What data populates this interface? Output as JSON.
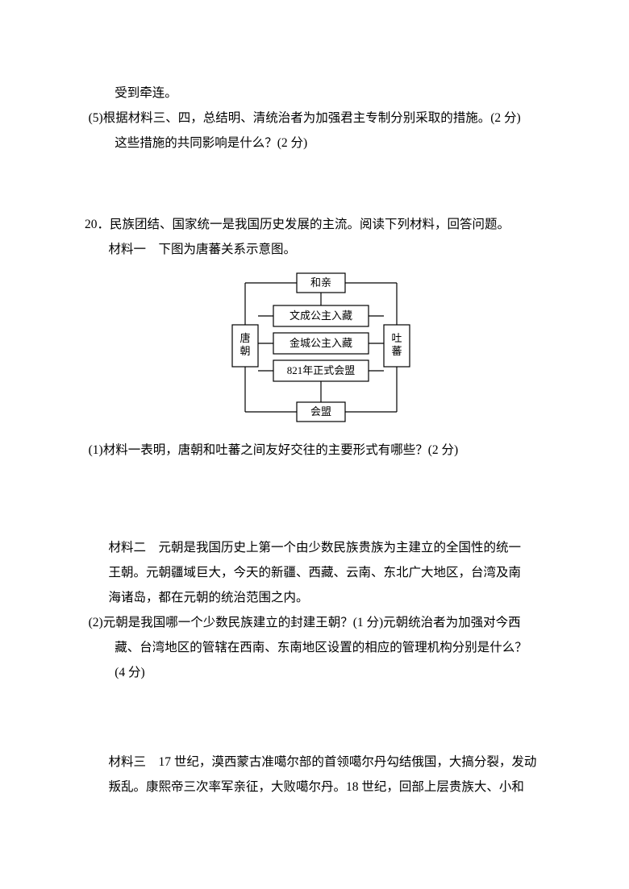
{
  "top": {
    "line1": "受到牵连。",
    "q5_line1": "(5)根据材料三、四，总结明、清统治者为加强君主专制分别采取的措施。(2 分)",
    "q5_line2": "这些措施的共同影响是什么？(2 分)"
  },
  "q20": {
    "intro": "20．民族团结、国家统一是我国历史发展的主流。阅读下列材料，回答问题。",
    "m1_label": "材料一　下图为唐蕃关系示意图。",
    "sub1": "(1)材料一表明，唐朝和吐蕃之间友好交往的主要形式有哪些？(2 分)",
    "m2_line1": "材料二　元朝是我国历史上第一个由少数民族贵族为主建立的全国性的统一",
    "m2_line2": "王朝。元朝疆域巨大，今天的新疆、西藏、云南、东北广大地区，台湾及南",
    "m2_line3": "海诸岛，都在元朝的统治范围之内。",
    "sub2_line1": "(2)元朝是我国哪一个少数民族建立的封建王朝？(1 分)元朝统治者为加强对今西",
    "sub2_line2": "藏、台湾地区的管辖在西南、东南地区设置的相应的管理机构分别是什么？",
    "sub2_line3": "(4 分)",
    "m3_line1": "材料三　17 世纪，漠西蒙古准噶尔部的首领噶尔丹勾结俄国，大搞分裂，发动",
    "m3_line2": "叛乱。康熙帝三次率军亲征，大败噶尔丹。18 世纪，回部上层贵族大、小和"
  },
  "diagram": {
    "top_box": "和亲",
    "left_box": "唐\n朝",
    "right_box": "吐\n蕃",
    "center1": "文成公主入藏",
    "center2": "金城公主入藏",
    "center3": "821年正式会盟",
    "bottom_box": "会盟",
    "stroke": "#000000",
    "fill": "#ffffff",
    "font_size": 13,
    "line_width": 1.2
  }
}
